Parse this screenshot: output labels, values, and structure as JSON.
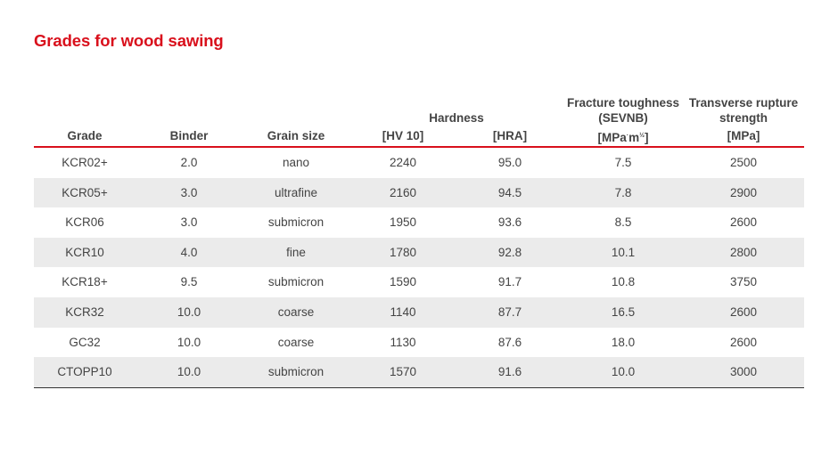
{
  "title": "Grades for wood sawing",
  "header": {
    "grade": "Grade",
    "binder": "Binder",
    "grain_size": "Grain size",
    "hardness_group": "Hardness",
    "hv10": "[HV 10]",
    "hra": "[HRA]",
    "fracture_line1": "Fracture toughness",
    "fracture_line2": "(SEVNB)",
    "fracture_unit_a": "[MPa",
    "fracture_unit_sup1": "·",
    "fracture_unit_b": "m",
    "fracture_unit_sup2": "½",
    "fracture_unit_c": "]",
    "trs_line1": "Transverse rupture",
    "trs_line2": "strength",
    "trs_unit": "[MPa]"
  },
  "rows": [
    {
      "grade": "KCR02+",
      "binder": "2.0",
      "grain": "nano",
      "hv": "2240",
      "hra": "95.0",
      "kic": "7.5",
      "trs": "2500"
    },
    {
      "grade": "KCR05+",
      "binder": "3.0",
      "grain": "ultrafine",
      "hv": "2160",
      "hra": "94.5",
      "kic": "7.8",
      "trs": "2900"
    },
    {
      "grade": "KCR06",
      "binder": "3.0",
      "grain": "submicron",
      "hv": "1950",
      "hra": "93.6",
      "kic": "8.5",
      "trs": "2600"
    },
    {
      "grade": "KCR10",
      "binder": "4.0",
      "grain": "fine",
      "hv": "1780",
      "hra": "92.8",
      "kic": "10.1",
      "trs": "2800"
    },
    {
      "grade": "KCR18+",
      "binder": "9.5",
      "grain": "submicron",
      "hv": "1590",
      "hra": "91.7",
      "kic": "10.8",
      "trs": "3750"
    },
    {
      "grade": "KCR32",
      "binder": "10.0",
      "grain": "coarse",
      "hv": "1140",
      "hra": "87.7",
      "kic": "16.5",
      "trs": "2600"
    },
    {
      "grade": "GC32",
      "binder": "10.0",
      "grain": "coarse",
      "hv": "1130",
      "hra": "87.6",
      "kic": "18.0",
      "trs": "2600"
    },
    {
      "grade": "CTOPP10",
      "binder": "10.0",
      "grain": "submicron",
      "hv": "1570",
      "hra": "91.6",
      "kic": "10.0",
      "trs": "3000"
    }
  ],
  "colors": {
    "accent": "#d9101c",
    "row_shade": "#ebebeb",
    "text": "#444444"
  }
}
